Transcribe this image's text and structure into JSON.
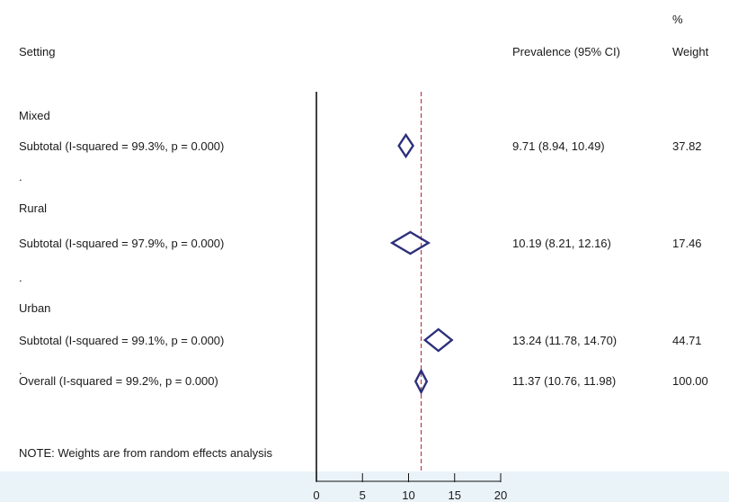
{
  "chart_data": {
    "type": "forest",
    "title": "",
    "columns": {
      "setting": "Setting",
      "ci": "Prevalence (95% CI)",
      "weight_pct": "%",
      "weight": "Weight"
    },
    "groups": [
      {
        "name": "Mixed",
        "subtotal_label": "Subtotal  (I-squared = 99.3%, p = 0.000)",
        "estimate": 9.71,
        "lower": 8.94,
        "upper": 10.49,
        "ci_text": "9.71 (8.94, 10.49)",
        "weight": "37.82"
      },
      {
        "name": "Rural",
        "subtotal_label": "Subtotal  (I-squared = 97.9%, p = 0.000)",
        "estimate": 10.19,
        "lower": 8.21,
        "upper": 12.16,
        "ci_text": "10.19 (8.21, 12.16)",
        "weight": "17.46"
      },
      {
        "name": "Urban",
        "subtotal_label": "Subtotal  (I-squared = 99.1%, p = 0.000)",
        "estimate": 13.24,
        "lower": 11.78,
        "upper": 14.7,
        "ci_text": "13.24 (11.78, 14.70)",
        "weight": "44.71"
      }
    ],
    "separator": ".",
    "overall": {
      "label": "Overall  (I-squared = 99.2%, p = 0.000)",
      "estimate": 11.37,
      "lower": 10.76,
      "upper": 11.98,
      "ci_text": "11.37 (10.76, 11.98)",
      "weight": "100.00"
    },
    "note": "NOTE: Weights are from random effects analysis",
    "x_ticks": [
      "0",
      "5",
      "10",
      "15",
      "20"
    ],
    "xlim": [
      0,
      20
    ],
    "null_line": 0,
    "colors": {
      "diamond": "#2b2f7a",
      "overall_line": "#c0394b",
      "axis_band": "#eaf3f8"
    }
  }
}
